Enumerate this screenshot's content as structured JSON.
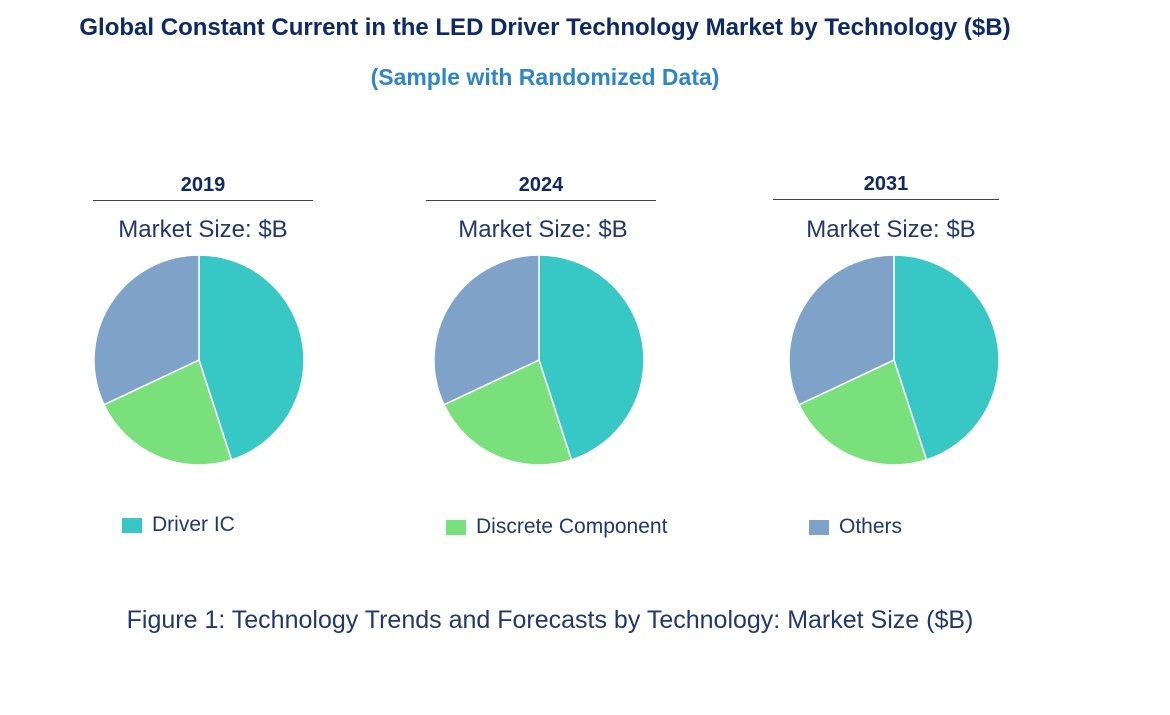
{
  "title": "Global Constant Current in the LED Driver Technology Market by Technology ($B)",
  "subtitle": "(Sample with Randomized Data)",
  "caption": "Figure 1: Technology Trends and Forecasts by Technology: Market Size ($B)",
  "colors": {
    "driver_ic": "#37c8c5",
    "discrete_component": "#7ae07c",
    "others": "#7fa3c8"
  },
  "chart_data": [
    {
      "type": "pie",
      "title": "2019",
      "subtitle": "Market Size: $B",
      "labels": [
        "Driver IC",
        "Discrete Component",
        "Others"
      ],
      "values": [
        45,
        23,
        32
      ]
    },
    {
      "type": "pie",
      "title": "2024",
      "subtitle": "Market Size: $B",
      "labels": [
        "Driver IC",
        "Discrete Component",
        "Others"
      ],
      "values": [
        45,
        23,
        32
      ]
    },
    {
      "type": "pie",
      "title": "2031",
      "subtitle": "Market Size: $B",
      "labels": [
        "Driver IC",
        "Discrete Component",
        "Others"
      ],
      "values": [
        45,
        23,
        32
      ]
    }
  ],
  "legend": [
    {
      "label": "Driver IC",
      "color": "#37c8c5"
    },
    {
      "label": "Discrete Component",
      "color": "#7ae07c"
    },
    {
      "label": "Others",
      "color": "#7fa3c8"
    }
  ]
}
